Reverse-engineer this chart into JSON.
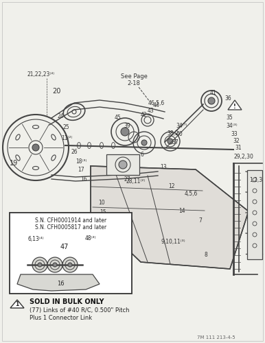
{
  "bg_color": "#f0f0eb",
  "line_color": "#444444",
  "footer_code": "7M 111 213-4-5",
  "note_title": "SOLD IN BULK ONLY",
  "note_line1": "(77) Links of #40 R/C, 0.500\" Pitch",
  "note_line2": "Plus 1 Connector Link",
  "sn_line1": "S.N. CFH0001914 and later",
  "sn_line2": "S.N. CFH0005817 and later",
  "see_page": "See Page",
  "page_ref": "2-18"
}
